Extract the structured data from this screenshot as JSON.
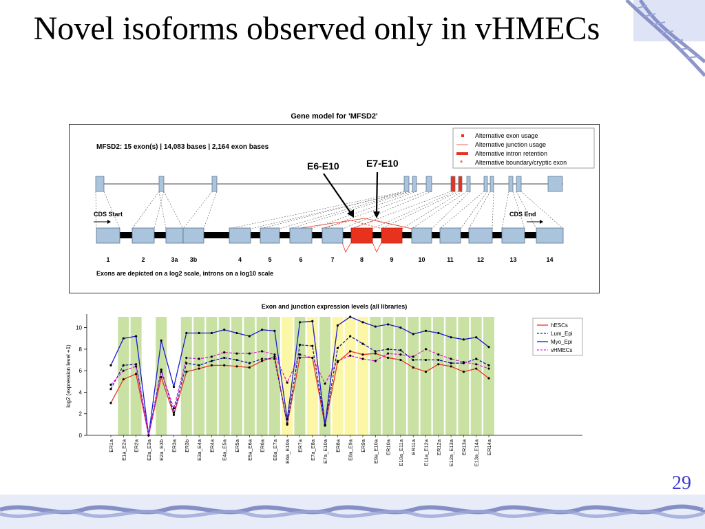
{
  "slide": {
    "title": "Novel isoforms observed only in vHMECs",
    "page_number": "29"
  },
  "gene_model": {
    "title": "Gene model for 'MFSD2'",
    "summary": "MFSD2:  15 exon(s) | 14,083 bases | 2,164 exon bases",
    "legend": [
      {
        "label": "Alternative exon usage",
        "symbol": "square",
        "color": "#e8321e"
      },
      {
        "label": "Alternative junction usage",
        "symbol": "thin-line",
        "color": "#e8321e"
      },
      {
        "label": "Alternative intron retention",
        "symbol": "thick-line",
        "color": "#e8321e"
      },
      {
        "label": "Alternative boundary/cryptic exon",
        "symbol": "asterisk",
        "color": "#e8321e"
      }
    ],
    "cds_start_label": "CDS Start",
    "cds_end_label": "CDS End",
    "exon_labels": [
      "1",
      "2",
      "3a",
      "3b",
      "4",
      "5",
      "6",
      "7",
      "8",
      "9",
      "10",
      "11",
      "12",
      "13",
      "14"
    ],
    "alternative_exons": [
      "8",
      "9"
    ],
    "annotations": [
      "E6-E10",
      "E7-E10"
    ],
    "footnote": "Exons are depicted on a log2 scale, introns on a log10 scale"
  },
  "chart_data": {
    "type": "line",
    "title": "Exon and junction expression levels (all libraries)",
    "xlabel": "",
    "ylabel": "log2 (expression level +1)",
    "ylim": [
      0,
      11
    ],
    "yticks": [
      0,
      2,
      4,
      6,
      8,
      10
    ],
    "grid": false,
    "legend_position": "top-right",
    "categories": [
      "ER1a",
      "E1a_E2a",
      "ER2a",
      "E2a_E3a",
      "E2a_E3b",
      "ER3a",
      "ER3b",
      "E3a_E4a",
      "ER4a",
      "E4a_E5a",
      "ER5a",
      "E5a_E6a",
      "ER6a",
      "E6a_E7a",
      "E6a_E10a",
      "ER7a",
      "E7a_E8a",
      "E7a_E10a",
      "ER8a",
      "E8a_E9a",
      "ER9a",
      "E9a_E10a",
      "ER10a",
      "E10a_E11a",
      "ER11a",
      "E11a_E12a",
      "ER12a",
      "E12a_E13a",
      "ER13a",
      "E13a_E14a",
      "ER14a"
    ],
    "highlight_bands": [
      {
        "category": "E1a_E2a",
        "color": "#c9e2a4"
      },
      {
        "category": "ER2a",
        "color": "#c9e2a4"
      },
      {
        "category": "E2a_E3b",
        "color": "#c9e2a4"
      },
      {
        "category": "ER3b",
        "color": "#c9e2a4"
      },
      {
        "category": "E3a_E4a",
        "color": "#c9e2a4"
      },
      {
        "category": "ER4a",
        "color": "#c9e2a4"
      },
      {
        "category": "E4a_E5a",
        "color": "#c9e2a4"
      },
      {
        "category": "ER5a",
        "color": "#c9e2a4"
      },
      {
        "category": "E5a_E6a",
        "color": "#c9e2a4"
      },
      {
        "category": "ER6a",
        "color": "#c9e2a4"
      },
      {
        "category": "E6a_E7a",
        "color": "#c9e2a4"
      },
      {
        "category": "E6a_E10a",
        "color": "#fbf7a6"
      },
      {
        "category": "ER7a",
        "color": "#c9e2a4"
      },
      {
        "category": "E7a_E8a",
        "color": "#fbf7a6"
      },
      {
        "category": "E7a_E10a",
        "color": "#c9e2a4"
      },
      {
        "category": "ER8a",
        "color": "#fbf7a6"
      },
      {
        "category": "E8a_E9a",
        "color": "#fbf7a6"
      },
      {
        "category": "ER9a",
        "color": "#fbf7a6"
      },
      {
        "category": "E9a_E10a",
        "color": "#c9e2a4"
      },
      {
        "category": "ER10a",
        "color": "#c9e2a4"
      },
      {
        "category": "E10a_E11a",
        "color": "#c9e2a4"
      },
      {
        "category": "ER11a",
        "color": "#c9e2a4"
      },
      {
        "category": "E11a_E12a",
        "color": "#c9e2a4"
      },
      {
        "category": "ER12a",
        "color": "#c9e2a4"
      },
      {
        "category": "E12a_E13a",
        "color": "#c9e2a4"
      },
      {
        "category": "ER13a",
        "color": "#c9e2a4"
      },
      {
        "category": "E13a_E14a",
        "color": "#c9e2a4"
      },
      {
        "category": "ER14a",
        "color": "#c9e2a4"
      }
    ],
    "series": [
      {
        "name": "hESCs",
        "color": "#e8321e",
        "dash": "solid",
        "values": [
          3.0,
          5.2,
          5.7,
          0.0,
          5.4,
          1.9,
          5.9,
          6.2,
          6.5,
          6.5,
          6.4,
          6.3,
          6.9,
          7.3,
          1.0,
          7.2,
          7.2,
          0.9,
          6.8,
          7.8,
          7.5,
          7.6,
          7.2,
          7.0,
          6.3,
          5.9,
          6.6,
          6.4,
          5.9,
          6.2,
          5.3
        ]
      },
      {
        "name": "Lum_Epi",
        "color": "#1a1aa8",
        "dash": "dashed",
        "values": [
          4.3,
          6.5,
          6.6,
          0.0,
          6.1,
          2.1,
          6.7,
          6.5,
          6.9,
          7.2,
          7.0,
          6.7,
          7.1,
          7.1,
          1.1,
          8.4,
          8.3,
          0.9,
          8.1,
          9.2,
          8.5,
          7.8,
          8.0,
          7.9,
          7.0,
          7.0,
          7.0,
          6.7,
          6.7,
          7.1,
          6.5
        ]
      },
      {
        "name": "Myo_Epi",
        "color": "#1a1ad0",
        "dash": "solid",
        "values": [
          6.5,
          9.0,
          9.2,
          0.0,
          8.8,
          4.5,
          9.5,
          9.5,
          9.5,
          9.8,
          9.5,
          9.2,
          9.8,
          9.7,
          1.5,
          10.5,
          10.6,
          1.0,
          10.2,
          11.0,
          10.5,
          10.1,
          10.3,
          10.0,
          9.4,
          9.7,
          9.5,
          9.1,
          8.9,
          9.1,
          8.2
        ]
      },
      {
        "name": "vHMECs",
        "color": "#e020e0",
        "dash": "dashed",
        "values": [
          4.7,
          6.0,
          6.4,
          0.0,
          5.9,
          2.5,
          7.2,
          7.1,
          7.3,
          7.7,
          7.6,
          7.6,
          7.8,
          7.5,
          4.9,
          7.5,
          7.2,
          4.8,
          6.9,
          7.4,
          7.1,
          6.9,
          7.6,
          7.5,
          7.3,
          8.0,
          7.5,
          7.1,
          6.8,
          6.6,
          6.2
        ]
      }
    ]
  }
}
